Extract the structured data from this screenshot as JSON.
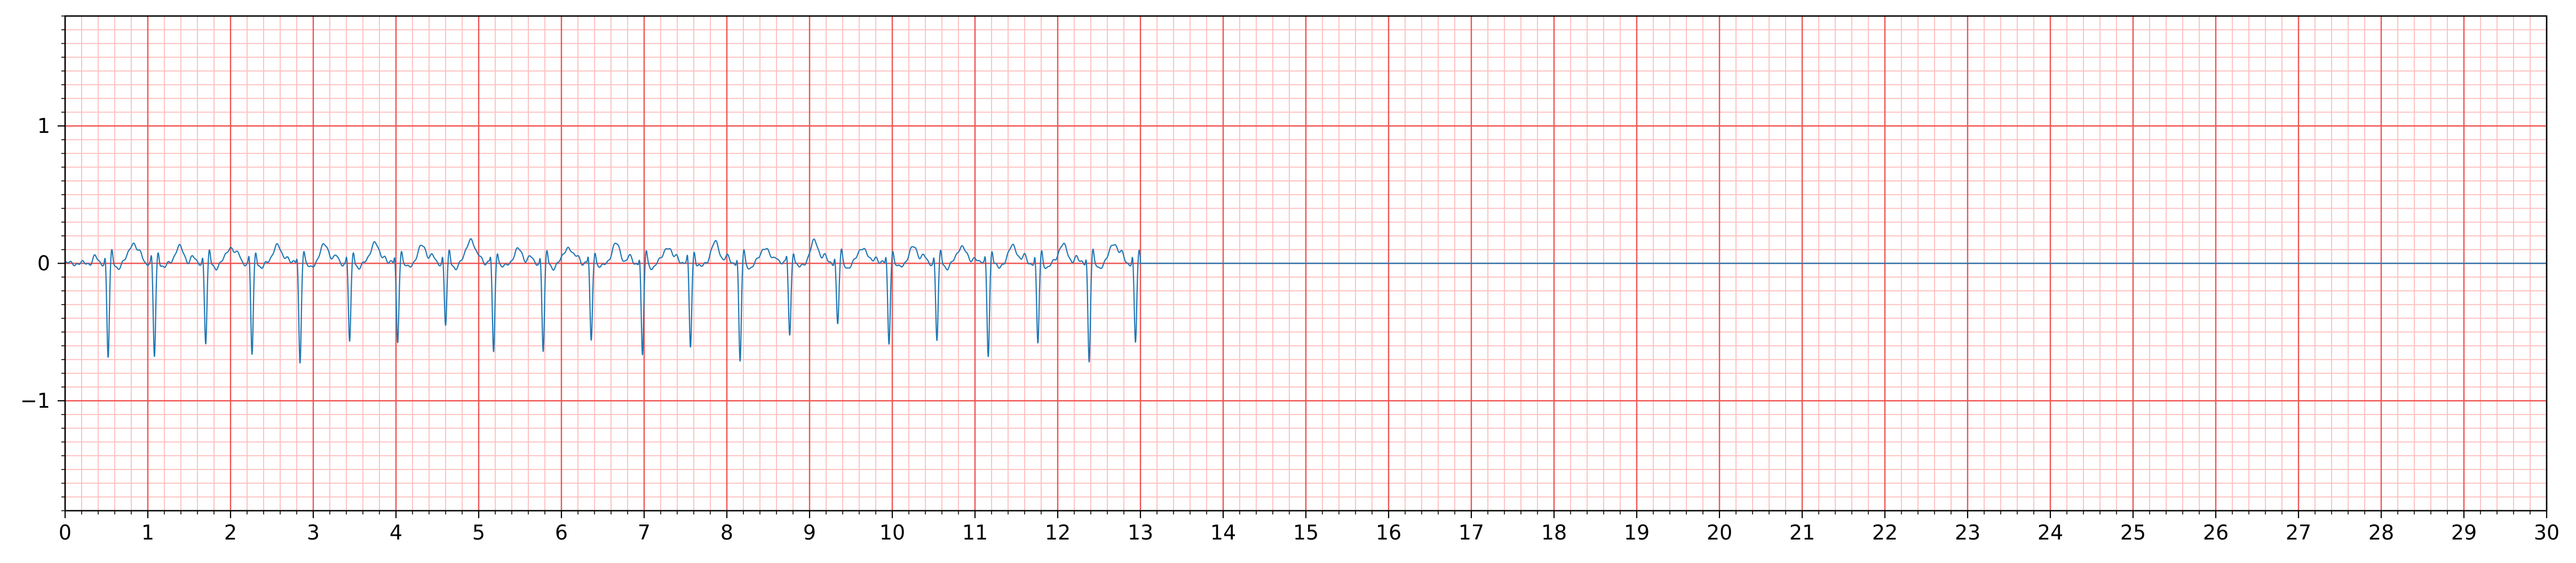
{
  "chart_data": {
    "type": "line",
    "title": "",
    "xlabel": "",
    "ylabel": "",
    "xlim": [
      0,
      30
    ],
    "ylim": [
      -1.8,
      1.8
    ],
    "x_ticks": [
      0,
      1,
      2,
      3,
      4,
      5,
      6,
      7,
      8,
      9,
      10,
      11,
      12,
      13,
      14,
      15,
      16,
      17,
      18,
      19,
      20,
      21,
      22,
      23,
      24,
      25,
      26,
      27,
      28,
      29,
      30
    ],
    "x_tick_labels": [
      "0",
      "1",
      "2",
      "3",
      "4",
      "5",
      "6",
      "7",
      "8",
      "9",
      "10",
      "11",
      "12",
      "13",
      "14",
      "15",
      "16",
      "17",
      "18",
      "19",
      "20",
      "21",
      "22",
      "23",
      "24",
      "25",
      "26",
      "27",
      "28",
      "29",
      "30"
    ],
    "y_ticks": [
      -1,
      0,
      1
    ],
    "y_tick_labels": [
      "−1",
      "0",
      "1"
    ],
    "grid": {
      "major": true,
      "minor": true,
      "major_color": "#ef5350",
      "minor_color": "#ffc2c2",
      "x_major_step": 1,
      "x_minor_step": 0.2,
      "y_major_step": 1,
      "y_minor_step": 0.1
    },
    "line_color": "#1f77b4",
    "signal_end": 13.0,
    "flat_value_after_end": 0.0,
    "beat_times": [
      0.52,
      1.08,
      1.7,
      2.26,
      2.84,
      3.44,
      4.02,
      4.6,
      5.18,
      5.78,
      6.36,
      6.98,
      7.56,
      8.16,
      8.76,
      9.34,
      9.96,
      10.54,
      11.16,
      11.76,
      12.38,
      12.94
    ],
    "beat_amplitudes": [
      -0.68,
      -0.68,
      -0.58,
      -0.67,
      -0.72,
      -0.58,
      -0.57,
      -0.45,
      -0.65,
      -0.64,
      -0.57,
      -0.68,
      -0.6,
      -0.72,
      -0.52,
      -0.44,
      -0.58,
      -0.56,
      -0.66,
      -0.59,
      -0.71,
      -0.58
    ],
    "t_wave_peaks": [
      0.15,
      0.12,
      0.12,
      0.13,
      0.14,
      0.15,
      0.13,
      0.18,
      0.1,
      0.12,
      0.14,
      0.12,
      0.15,
      0.12,
      0.16,
      0.12,
      0.12,
      0.13,
      0.13,
      0.14,
      0.15,
      0.12
    ]
  }
}
